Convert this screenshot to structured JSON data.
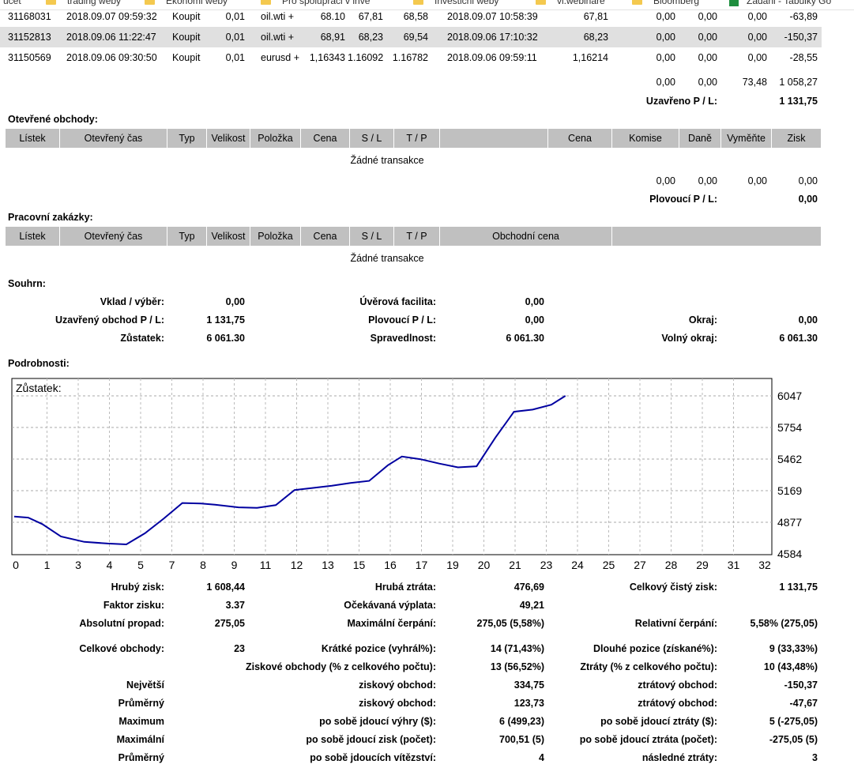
{
  "bookmarks": [
    "ucet",
    "trading weby",
    "Ekonomi weby",
    "Pro spolupraci v inve",
    "Investicni weby",
    "vi.webinare",
    "Bloomberg",
    "Zadani - Tabulky Go"
  ],
  "closed_rows": [
    {
      "ticket": "31168031",
      "open_time": "2018.09.07 09:59:32",
      "type": "Koupit",
      "size": "0,01",
      "item": "oil.wti +",
      "price": "68.10",
      "sl": "67,81",
      "tp": "68,58",
      "close_time": "2018.09.07 10:58:39",
      "close_price": "67,81",
      "commission": "0,00",
      "taxes": "0,00",
      "swap": "0,00",
      "profit": "-63,89"
    },
    {
      "ticket": "31152813",
      "open_time": "2018.09.06 11:22:47",
      "type": "Koupit",
      "size": "0,01",
      "item": "oil.wti +",
      "price": "68,91",
      "sl": "68,23",
      "tp": "69,54",
      "close_time": "2018.09.06 17:10:32",
      "close_price": "68,23",
      "commission": "0,00",
      "taxes": "0,00",
      "swap": "0,00",
      "profit": "-150,37"
    },
    {
      "ticket": "31150569",
      "open_time": "2018.09.06 09:30:50",
      "type": "Koupit",
      "size": "0,01",
      "item": "eurusd +",
      "price": "1,16343",
      "sl": "1.16092",
      "tp": "1.16782",
      "close_time": "2018.09.06 09:59:11",
      "close_price": "1,16214",
      "commission": "0,00",
      "taxes": "0,00",
      "swap": "0,00",
      "profit": "-28,55"
    }
  ],
  "closed_totals": {
    "commission": "0,00",
    "taxes": "0,00",
    "swap": "73,48",
    "profit": "1 058,27",
    "pl_label": "Uzavřeno P / L:",
    "pl_value": "1 131,75"
  },
  "open_section": {
    "title": "Otevřené obchody:",
    "headers": [
      "Lístek",
      "Otevřený čas",
      "Typ",
      "Velikost",
      "Položka",
      "Cena",
      "S / L",
      "T / P",
      "",
      "Cena",
      "Komise",
      "Daně",
      "Vyměňte",
      "Zisk"
    ],
    "empty": "Žádné transakce",
    "totals": {
      "commission": "0,00",
      "taxes": "0,00",
      "swap": "0,00",
      "profit": "0,00"
    },
    "pl_label": "Plovoucí P / L:",
    "pl_value": "0,00"
  },
  "working_section": {
    "title": "Pracovní zakázky:",
    "headers": [
      "Lístek",
      "Otevřený čas",
      "Typ",
      "Velikost",
      "Položka",
      "Cena",
      "S / L",
      "T / P",
      "Obchodní cena"
    ],
    "empty": "Žádné transakce"
  },
  "summary": {
    "title": "Souhrn:",
    "deposit_label": "Vklad / výběr:",
    "deposit": "0,00",
    "credit_label": "Úvěrová facilita:",
    "credit": "0,00",
    "closed_pl_label": "Uzavřený obchod P / L:",
    "closed_pl": "1 131,75",
    "floating_label": "Plovoucí P / L:",
    "floating": "0,00",
    "margin_label": "Okraj:",
    "margin": "0,00",
    "balance_label": "Zůstatek:",
    "balance": "6 061.30",
    "equity_label": "Spravedlnost:",
    "equity": "6 061.30",
    "free_margin_label": "Volný okraj:",
    "free_margin": "6 061.30"
  },
  "details_title": "Podrobnosti:",
  "chart_data": {
    "type": "line",
    "title": "Zůstatek:",
    "x_ticks": [
      "0",
      "1",
      "3",
      "4",
      "5",
      "7",
      "8",
      "9",
      "11",
      "12",
      "13",
      "15",
      "16",
      "17",
      "19",
      "20",
      "21",
      "23",
      "24",
      "25",
      "27",
      "28",
      "29",
      "31",
      "32"
    ],
    "y_ticks": [
      "6047",
      "5754",
      "5462",
      "5169",
      "4877",
      "4584"
    ],
    "ylim": [
      4584,
      6047
    ],
    "xlim": [
      0,
      32
    ],
    "line_color": "#0000a0",
    "x": [
      0,
      0.6,
      1.2,
      2.0,
      3.0,
      4.0,
      4.8,
      5.6,
      6.4,
      7.2,
      8.0,
      8.6,
      9.6,
      10.4,
      11.2,
      12.0,
      12.8,
      13.6,
      14.4,
      15.2,
      16.0,
      16.6,
      17.4,
      18.2,
      19.0,
      19.8,
      20.6,
      21.4,
      22.2,
      23.0,
      23.6
    ],
    "values": [
      4930,
      4920,
      4860,
      4745,
      4695,
      4680,
      4672,
      4775,
      4910,
      5055,
      5050,
      5040,
      5015,
      5010,
      5035,
      5175,
      5195,
      5215,
      5240,
      5260,
      5405,
      5485,
      5460,
      5420,
      5385,
      5395,
      5660,
      5900,
      5920,
      5965,
      6047
    ],
    "grid": true
  },
  "stats": [
    {
      "l1": "Hrubý zisk:",
      "v1": "1 608,44",
      "l2": "Hrubá ztráta:",
      "v2": "476,69",
      "l3": "Celkový čistý zisk:",
      "v3": "1 131,75"
    },
    {
      "l1": "Faktor zisku:",
      "v1": "3.37",
      "l2": "Očekávaná výplata:",
      "v2": "49,21",
      "l3": "",
      "v3": ""
    },
    {
      "l1": "Absolutní propad:",
      "v1": "275,05",
      "l2": "Maximální čerpání:",
      "v2": "275,05 (5,58%)",
      "l3": "Relativní čerpání:",
      "v3": "5,58% (275,05)"
    },
    {
      "l1": "Celkové obchody:",
      "v1": "23",
      "l2": "Krátké pozice (vyhrál%):",
      "v2": "14 (71,43%)",
      "l3": "Dlouhé pozice (získané%):",
      "v3": "9 (33,33%)"
    },
    {
      "l1": "",
      "v1": "",
      "l2": "Ziskové obchody (% z celkového počtu):",
      "v2": "13 (56,52%)",
      "l3": "Ztráty (% z celkového počtu):",
      "v3": "10 (43,48%)"
    },
    {
      "l1": "Největší",
      "v1": "",
      "l2": "ziskový obchod:",
      "v2": "334,75",
      "l3": "ztrátový obchod:",
      "v3": "-150,37"
    },
    {
      "l1": "Průměrný",
      "v1": "",
      "l2": "ziskový obchod:",
      "v2": "123,73",
      "l3": "ztrátový obchod:",
      "v3": "-47,67"
    },
    {
      "l1": "Maximum",
      "v1": "",
      "l2": "po sobě jdoucí výhry ($):",
      "v2": "6 (499,23)",
      "l3": "po sobě jdoucí ztráty ($):",
      "v3": "5 (-275,05)"
    },
    {
      "l1": "Maximální",
      "v1": "",
      "l2": "po sobě jdoucí zisk (počet):",
      "v2": "700,51 (5)",
      "l3": "po sobě jdoucí ztráta (počet):",
      "v3": "-275,05 (5)"
    },
    {
      "l1": "Průměrný",
      "v1": "",
      "l2": "po sobě jdoucích vítězství:",
      "v2": "4",
      "l3": "následné ztráty:",
      "v3": "3"
    }
  ]
}
